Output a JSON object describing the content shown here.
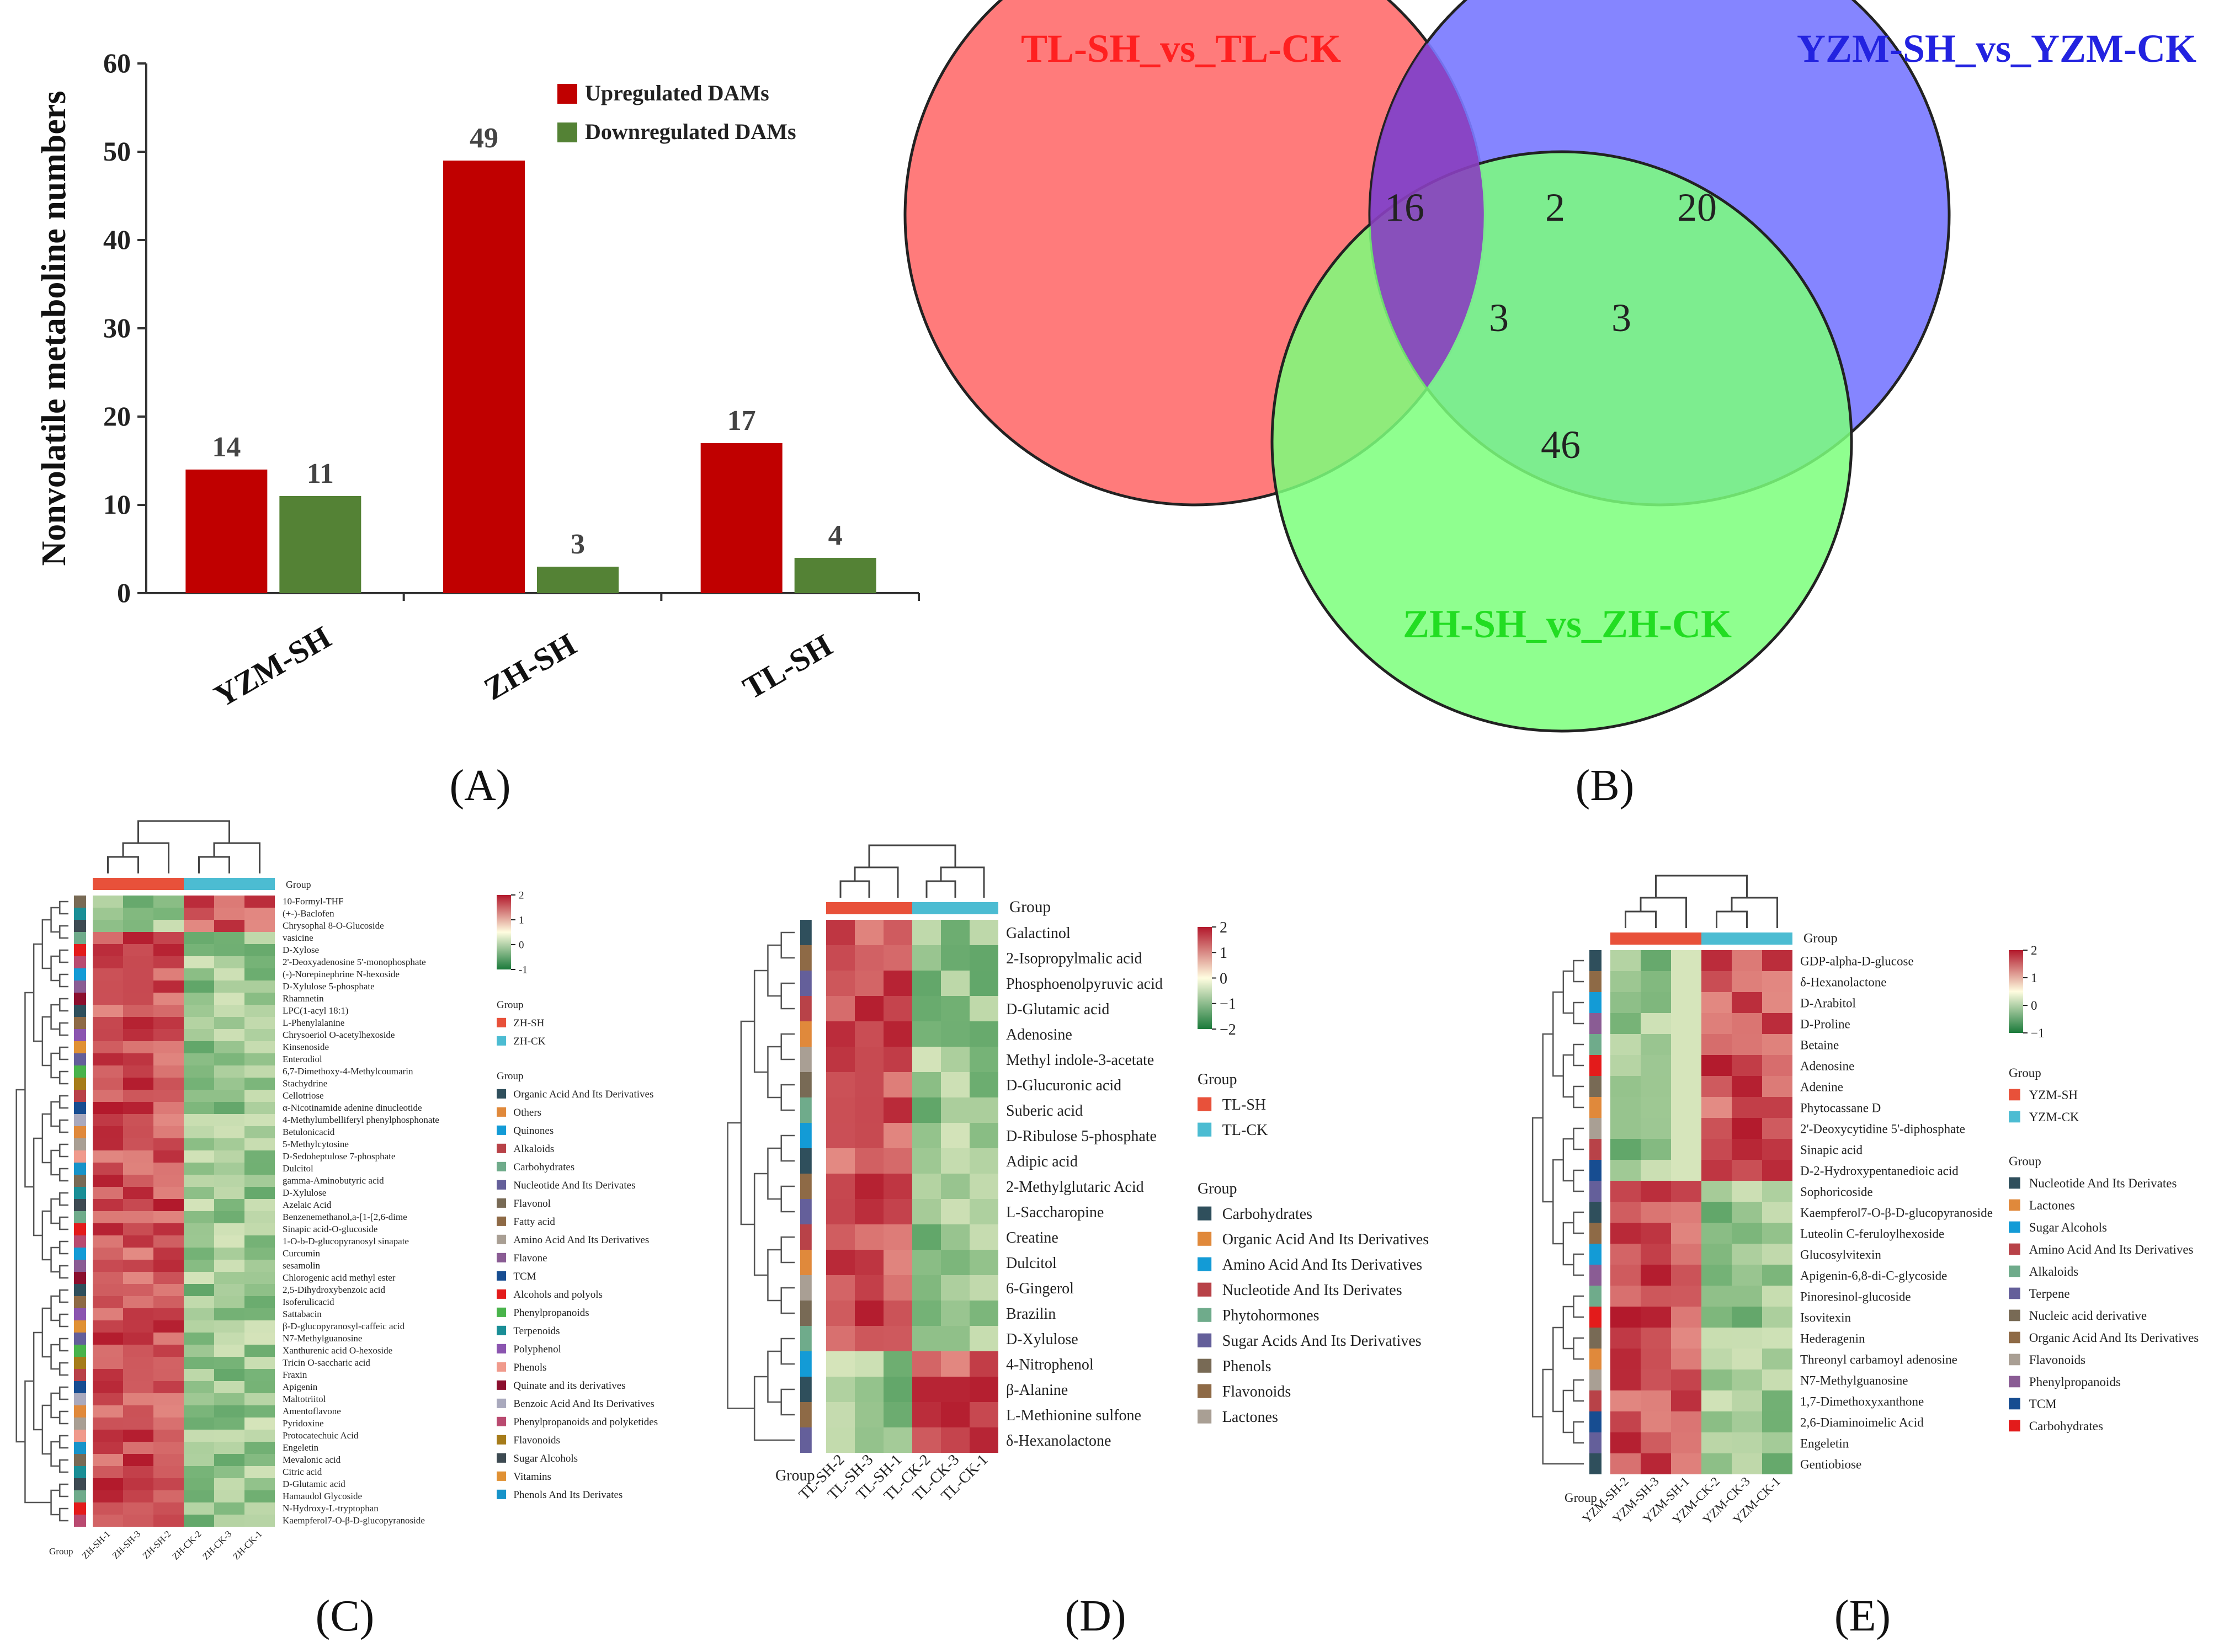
{
  "panel_labels": {
    "A": "(A)",
    "B": "(B)",
    "C": "(C)",
    "D": "(D)",
    "E": "(E)"
  },
  "colors": {
    "up": "#c00000",
    "down": "#548235",
    "tl": "#ff7b7b",
    "yzm": "#7b7bff",
    "zh": "#7bff7b",
    "sh_bar": "#e8513a",
    "ck_bar": "#4cbcd2"
  },
  "chart_data": [
    {
      "id": "A",
      "type": "bar",
      "title": "",
      "categories": [
        "YZM-SH",
        "ZH-SH",
        "TL-SH"
      ],
      "series": [
        {
          "name": "Upregulated DAMs",
          "values": [
            14,
            49,
            17
          ]
        },
        {
          "name": "Downregulated DAMs",
          "values": [
            11,
            3,
            4
          ]
        }
      ],
      "xlabel": "",
      "ylabel": "Nonvolatile metaboline numbers",
      "ylim": [
        0,
        60
      ],
      "yticks": [
        0,
        10,
        20,
        30,
        40,
        50,
        60
      ],
      "legend_position": "top-right"
    },
    {
      "id": "B",
      "type": "venn",
      "sets": [
        "TL-SH_vs_TL-CK",
        "YZM-SH_vs_YZM-CK",
        "ZH-SH_vs_ZH-CK"
      ],
      "regions": {
        "tl_only": "16",
        "yzm_only": "20",
        "zh_only": "46",
        "tl_yzm": "2",
        "tl_zh": "3",
        "yzm_zh": "3"
      }
    },
    {
      "id": "C",
      "type": "heatmap",
      "group_label": "Group",
      "columns": [
        "ZH-SH-1",
        "ZH-SH-3",
        "ZH-SH-2",
        "ZH-CK-2",
        "ZH-CK-3",
        "ZH-CK-1"
      ],
      "rows": [
        "10-Formyl-THF",
        "(+-)-Baclofen",
        "Chrysophal 8-O-Glucoside",
        "vasicine",
        "D-Xylose",
        "2'-Deoxyadenosine 5'-monophosphate",
        "(-)-Norepinephrine N-hexoside",
        "D-Xylulose 5-phosphate",
        "Rhamnetin",
        "LPC(1-acyl 18:1)",
        "L-Phenylalanine",
        "Chrysoeriol O-acetylhexoside",
        "Kinsenoside",
        "Enterodiol",
        "6,7-Dimethoxy-4-Methylcoumarin",
        "Stachydrine",
        "Cellotriose",
        "α-Nicotinamide adenine dinucleotide",
        "4-Methylumbelliferyl phenylphosphonate",
        "Betulonicacid",
        "5-Methylcytosine",
        "D-Sedoheptulose 7-phosphate",
        "Dulcitol",
        "gamma-Aminobutyric acid",
        "D-Xylulose",
        "Azelaic Acid",
        "Benzenemethanol,a-[1-[2,6-dime",
        "Sinapic acid-O-glucoside",
        "1-O-b-D-glucopyranosyl sinapate",
        "Curcumin",
        "sesamolin",
        "Chlorogenic acid methyl ester",
        "2,5-Dihydroxybenzoic acid",
        "Isoferulicacid",
        "Sattabacin",
        "β-D-glucopyranosyl-caffeic acid",
        "N7-Methylguanosine",
        "Xanthurenic acid O-hexoside",
        "Tricin O-saccharic acid",
        "Fraxin",
        "Apigenin",
        "Maltotriitol",
        "Amentoflavone",
        "Pyridoxine",
        "Protocatechuic Acid",
        "Engeletin",
        "Mevalonic acid",
        "Citric acid",
        "D-Glutamic acid",
        "Hamaudol Glycoside",
        "N-Hydroxy-L-tryptophan",
        "Kaempferol7-O-β-D-glucopyranoside"
      ],
      "color_scale": {
        "min_label": "-1",
        "mid_label": "0",
        "max_labels": [
          "1",
          "2"
        ]
      },
      "groups_legend": {
        "title": "Group",
        "items": [
          "ZH-SH",
          "ZH-CK"
        ]
      },
      "class_legend": {
        "title": "Group",
        "items": [
          "Organic Acid And Its Derivatives",
          "Others",
          "Quinones",
          "Alkaloids",
          "Carbohydrates",
          "Nucleotide And Its Derivates",
          "Flavonol",
          "Fatty acid",
          "Amino Acid And Its Derivatives",
          "Flavone",
          "TCM",
          "Alcohols and polyols",
          "Phenylpropanoids",
          "Terpenoids",
          "Polyphenol",
          "Phenols",
          "Quinate and its derivatives",
          "Benzoic Acid And Its Derivatives",
          "Phenylpropanoids and polyketides",
          "Flavonoids",
          "Sugar Alcohols",
          "Vitamins",
          "Phenols And Its Derivates"
        ]
      }
    },
    {
      "id": "D",
      "type": "heatmap",
      "group_label": "Group",
      "columns": [
        "TL-SH-2",
        "TL-SH-3",
        "TL-SH-1",
        "TL-CK-2",
        "TL-CK-3",
        "TL-CK-1"
      ],
      "rows": [
        "Galactinol",
        "2-Isopropylmalic acid",
        "Phosphoenolpyruvic acid",
        "D-Glutamic acid",
        "Adenosine",
        "Methyl indole-3-acetate",
        "D-Glucuronic acid",
        "Suberic acid",
        "D-Ribulose 5-phosphate",
        "Adipic acid",
        "2-Methylglutaric Acid",
        "L-Saccharopine",
        "Creatine",
        "Dulcitol",
        "6-Gingerol",
        "Brazilin",
        "D-Xylulose",
        "4-Nitrophenol",
        "β-Alanine",
        "L-Methionine sulfone",
        "δ-Hexanolactone"
      ],
      "color_scale": {
        "labels": [
          "2",
          "1",
          "0",
          "−1",
          "−2"
        ]
      },
      "groups_legend": {
        "title": "Group",
        "items": [
          "TL-SH",
          "TL-CK"
        ]
      },
      "class_legend": {
        "title": "Group",
        "items": [
          "Carbohydrates",
          "Organic Acid And Its Derivatives",
          "Amino Acid And Its Derivatives",
          "Nucleotide And Its Derivates",
          "Phytohormones",
          "Sugar Acids And Its Derivatives",
          "Phenols",
          "Flavonoids",
          "Lactones"
        ]
      }
    },
    {
      "id": "E",
      "type": "heatmap",
      "group_label": "Group",
      "columns": [
        "YZM-SH-2",
        "YZM-SH-3",
        "YZM-SH-1",
        "YZM-CK-2",
        "YZM-CK-3",
        "YZM-CK-1"
      ],
      "rows": [
        "GDP-alpha-D-glucose",
        "δ-Hexanolactone",
        "D-Arabitol",
        "D-Proline",
        "Betaine",
        "Adenosine",
        "Adenine",
        "Phytocassane D",
        "2'-Deoxycytidine 5'-diphosphate",
        "Sinapic acid",
        "D-2-Hydroxypentanedioic acid",
        "Sophoricoside",
        "Kaempferol7-O-β-D-glucopyranoside",
        "Luteolin C-feruloylhexoside",
        "Glucosylvitexin",
        "Apigenin-6,8-di-C-glycoside",
        "Pinoresinol-glucoside",
        "Isovitexin",
        "Hederagenin",
        "Threonyl carbamoyl adenosine",
        "N7-Methylguanosine",
        "1,7-Dimethoxyxanthone",
        "2,6-Diaminoimelic Acid",
        "Engeletin",
        "Gentiobiose"
      ],
      "color_scale": {
        "labels": [
          "2",
          "1",
          "0",
          "−1"
        ]
      },
      "groups_legend": {
        "title": "Group",
        "items": [
          "YZM-SH",
          "YZM-CK"
        ]
      },
      "class_legend": {
        "title": "Group",
        "items": [
          "Nucleotide And Its Derivates",
          "Lactones",
          "Sugar Alcohols",
          "Amino Acid And Its Derivatives",
          "Alkaloids",
          "Terpene",
          "Nucleic acid derivative",
          "Organic Acid And Its Derivatives",
          "Flavonoids",
          "Phenylpropanoids",
          "TCM",
          "Carbohydrates"
        ]
      }
    }
  ]
}
